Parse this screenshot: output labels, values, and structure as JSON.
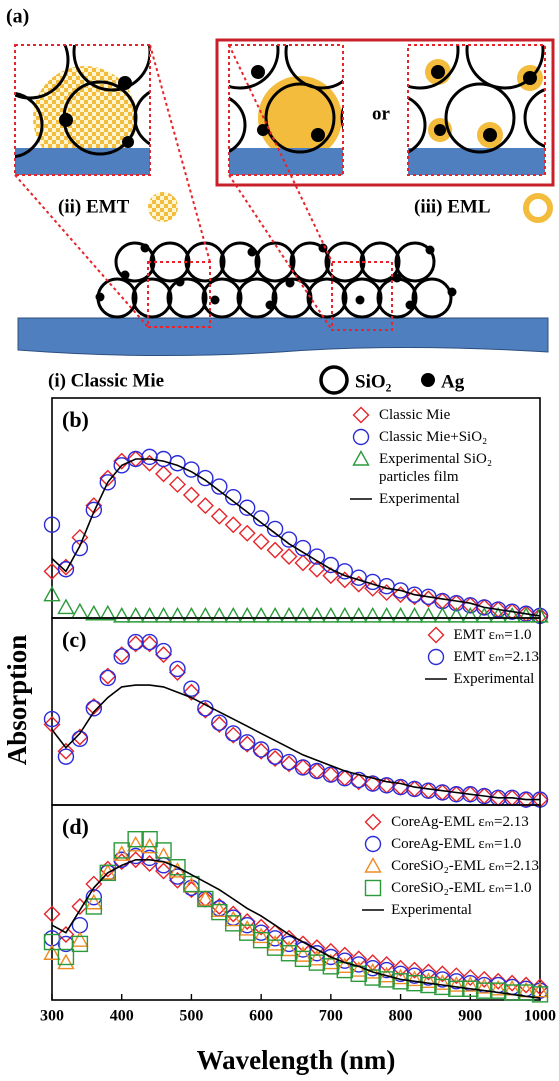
{
  "schematic": {
    "panel_label": "(a)",
    "emt_label": "(ii) EMT",
    "eml_label": "(iii) EML",
    "or": "or",
    "mie_label": "(i) Classic Mie",
    "sio2": "SiO₂",
    "ag": "Ag"
  },
  "chart_data": [
    {
      "type": "line",
      "label": "(b)",
      "xlim": [
        300,
        1000
      ],
      "ylim": [
        0,
        1
      ],
      "legend": "upper right",
      "x": [
        300,
        320,
        340,
        360,
        380,
        400,
        420,
        440,
        460,
        480,
        500,
        520,
        540,
        560,
        580,
        600,
        620,
        640,
        660,
        680,
        700,
        720,
        740,
        760,
        780,
        800,
        820,
        840,
        860,
        880,
        900,
        920,
        940,
        960,
        980,
        1000
      ],
      "series": [
        {
          "name": "Classic Mie",
          "color": "#e8242a",
          "marker": "diamond",
          "values": [
            0.22,
            0.24,
            0.38,
            0.53,
            0.66,
            0.74,
            0.75,
            0.73,
            0.68,
            0.63,
            0.58,
            0.53,
            0.48,
            0.44,
            0.4,
            0.36,
            0.32,
            0.29,
            0.26,
            0.23,
            0.2,
            0.18,
            0.16,
            0.14,
            0.12,
            0.11,
            0.1,
            0.09,
            0.08,
            0.07,
            0.06,
            0.05,
            0.04,
            0.03,
            0.02,
            0.01
          ]
        },
        {
          "name": "Classic Mie+SiO₂",
          "color": "#2b2bd9",
          "marker": "circle",
          "values": [
            0.44,
            0.23,
            0.33,
            0.51,
            0.64,
            0.72,
            0.75,
            0.76,
            0.75,
            0.73,
            0.7,
            0.66,
            0.62,
            0.57,
            0.52,
            0.47,
            0.42,
            0.37,
            0.33,
            0.29,
            0.25,
            0.22,
            0.19,
            0.17,
            0.15,
            0.13,
            0.11,
            0.1,
            0.08,
            0.07,
            0.06,
            0.05,
            0.04,
            0.03,
            0.02,
            0.01
          ]
        },
        {
          "name": "Experimental SiO₂ particles film",
          "color": "#2a9a3a",
          "marker": "triangle",
          "values": [
            0.11,
            0.05,
            0.03,
            0.02,
            0.02,
            0.01,
            0.01,
            0.01,
            0.01,
            0.01,
            0.01,
            0.01,
            0.01,
            0.01,
            0.01,
            0.01,
            0.01,
            0.01,
            0.01,
            0.01,
            0.01,
            0.01,
            0.01,
            0.01,
            0.01,
            0.01,
            0.01,
            0.01,
            0.01,
            0.01,
            0.01,
            0.01,
            0.01,
            0.01,
            0.01,
            0.01
          ]
        },
        {
          "name": "Experimental",
          "color": "#000000",
          "marker": "line",
          "values": [
            0.28,
            0.22,
            0.34,
            0.5,
            0.64,
            0.72,
            0.75,
            0.75,
            0.74,
            0.72,
            0.69,
            0.65,
            0.6,
            0.55,
            0.5,
            0.45,
            0.4,
            0.35,
            0.31,
            0.27,
            0.23,
            0.2,
            0.18,
            0.16,
            0.14,
            0.13,
            0.11,
            0.1,
            0.09,
            0.08,
            0.07,
            0.05,
            0.04,
            0.03,
            0.02,
            0.01
          ]
        }
      ]
    },
    {
      "type": "line",
      "label": "(c)",
      "ylabel": "Absorption",
      "xlim": [
        300,
        1000
      ],
      "ylim": [
        0,
        1
      ],
      "legend": "upper right",
      "x": [
        300,
        320,
        340,
        360,
        380,
        400,
        420,
        440,
        460,
        480,
        500,
        520,
        540,
        560,
        580,
        600,
        620,
        640,
        660,
        680,
        700,
        720,
        740,
        760,
        780,
        800,
        820,
        840,
        860,
        880,
        900,
        920,
        940,
        960,
        980,
        1000
      ],
      "series": [
        {
          "name": "EMT εₘ=1.0",
          "color": "#e8242a",
          "marker": "diamond",
          "values": [
            0.45,
            0.3,
            0.38,
            0.55,
            0.72,
            0.84,
            0.9,
            0.9,
            0.84,
            0.74,
            0.63,
            0.53,
            0.45,
            0.39,
            0.34,
            0.3,
            0.26,
            0.23,
            0.21,
            0.19,
            0.17,
            0.15,
            0.13,
            0.12,
            0.11,
            0.1,
            0.09,
            0.08,
            0.07,
            0.06,
            0.06,
            0.05,
            0.04,
            0.04,
            0.03,
            0.03
          ]
        },
        {
          "name": "EMT εₘ=2.13",
          "color": "#2b2bd9",
          "marker": "circle",
          "values": [
            0.48,
            0.27,
            0.37,
            0.54,
            0.71,
            0.83,
            0.91,
            0.91,
            0.86,
            0.76,
            0.65,
            0.54,
            0.46,
            0.4,
            0.35,
            0.31,
            0.27,
            0.24,
            0.21,
            0.19,
            0.17,
            0.15,
            0.14,
            0.12,
            0.11,
            0.1,
            0.09,
            0.08,
            0.07,
            0.06,
            0.06,
            0.05,
            0.04,
            0.04,
            0.03,
            0.03
          ]
        },
        {
          "name": "Experimental",
          "color": "#000000",
          "marker": "line",
          "values": [
            0.42,
            0.32,
            0.4,
            0.52,
            0.6,
            0.66,
            0.67,
            0.67,
            0.66,
            0.63,
            0.6,
            0.56,
            0.52,
            0.48,
            0.44,
            0.4,
            0.36,
            0.32,
            0.28,
            0.25,
            0.22,
            0.19,
            0.17,
            0.15,
            0.13,
            0.12,
            0.1,
            0.09,
            0.08,
            0.07,
            0.06,
            0.05,
            0.04,
            0.04,
            0.03,
            0.03
          ]
        }
      ]
    },
    {
      "type": "line",
      "label": "(d)",
      "xlabel": "Wavelength (nm)",
      "xlim": [
        300,
        1000
      ],
      "ylim": [
        0,
        1
      ],
      "legend": "upper right",
      "xticks": [
        300,
        400,
        500,
        600,
        700,
        800,
        900,
        1000
      ],
      "x": [
        300,
        320,
        340,
        360,
        380,
        400,
        420,
        440,
        460,
        480,
        500,
        520,
        540,
        560,
        580,
        600,
        620,
        640,
        660,
        680,
        700,
        720,
        740,
        760,
        780,
        800,
        820,
        840,
        860,
        880,
        900,
        920,
        940,
        960,
        980,
        1000
      ],
      "series": [
        {
          "name": "CoreAg-EML εₘ=2.13",
          "color": "#e8242a",
          "marker": "diamond",
          "values": [
            0.46,
            0.35,
            0.5,
            0.62,
            0.7,
            0.74,
            0.75,
            0.73,
            0.69,
            0.64,
            0.59,
            0.54,
            0.5,
            0.46,
            0.42,
            0.39,
            0.36,
            0.33,
            0.3,
            0.28,
            0.26,
            0.24,
            0.22,
            0.2,
            0.19,
            0.17,
            0.16,
            0.15,
            0.14,
            0.13,
            0.12,
            0.11,
            0.1,
            0.09,
            0.08,
            0.07
          ]
        },
        {
          "name": "CoreAg-EML εₘ=1.0",
          "color": "#2b2bd9",
          "marker": "circle",
          "values": [
            0.33,
            0.3,
            0.4,
            0.55,
            0.68,
            0.75,
            0.77,
            0.76,
            0.72,
            0.66,
            0.6,
            0.54,
            0.49,
            0.44,
            0.4,
            0.36,
            0.33,
            0.3,
            0.27,
            0.25,
            0.23,
            0.21,
            0.19,
            0.17,
            0.16,
            0.14,
            0.13,
            0.12,
            0.11,
            0.1,
            0.09,
            0.08,
            0.08,
            0.07,
            0.06,
            0.05
          ]
        },
        {
          "name": "CoreSiO₂-EML εₘ=2.13",
          "color": "#f08a24",
          "marker": "triangle",
          "values": [
            0.25,
            0.2,
            0.32,
            0.52,
            0.68,
            0.78,
            0.83,
            0.82,
            0.77,
            0.69,
            0.61,
            0.54,
            0.48,
            0.43,
            0.38,
            0.34,
            0.3,
            0.27,
            0.24,
            0.22,
            0.2,
            0.18,
            0.16,
            0.15,
            0.13,
            0.12,
            0.11,
            0.1,
            0.09,
            0.08,
            0.08,
            0.07,
            0.06,
            0.06,
            0.05,
            0.05
          ]
        },
        {
          "name": "CoreSiO₂-EML εₘ=1.0",
          "color": "#2a9a3a",
          "marker": "square",
          "values": [
            0.31,
            0.23,
            0.3,
            0.5,
            0.68,
            0.8,
            0.86,
            0.86,
            0.8,
            0.71,
            0.62,
            0.54,
            0.47,
            0.41,
            0.36,
            0.32,
            0.28,
            0.25,
            0.22,
            0.2,
            0.18,
            0.16,
            0.14,
            0.12,
            0.11,
            0.1,
            0.09,
            0.08,
            0.07,
            0.06,
            0.06,
            0.05,
            0.05,
            0.04,
            0.04,
            0.03
          ]
        },
        {
          "name": "Experimental",
          "color": "#000000",
          "marker": "line",
          "values": [
            0.4,
            0.36,
            0.48,
            0.6,
            0.68,
            0.72,
            0.75,
            0.75,
            0.74,
            0.71,
            0.67,
            0.63,
            0.59,
            0.54,
            0.49,
            0.45,
            0.4,
            0.35,
            0.31,
            0.27,
            0.23,
            0.2,
            0.18,
            0.15,
            0.13,
            0.11,
            0.1,
            0.09,
            0.08,
            0.07,
            0.06,
            0.05,
            0.04,
            0.03,
            0.02,
            0.01
          ]
        }
      ]
    }
  ]
}
